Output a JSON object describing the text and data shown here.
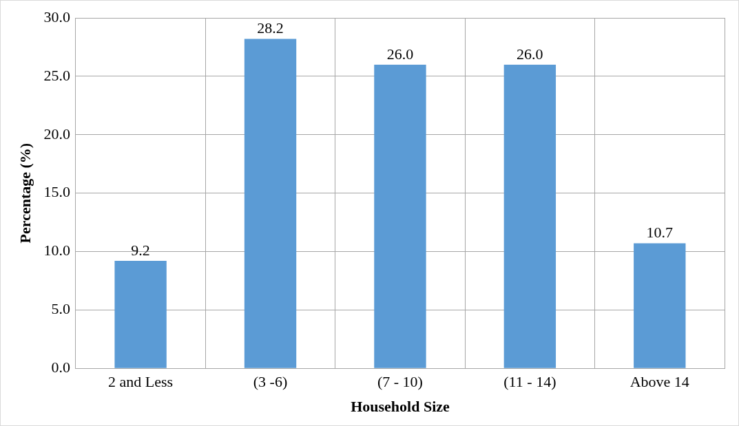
{
  "chart_data": {
    "type": "bar",
    "xlabel": "Household Size",
    "ylabel": "Percentage (%)",
    "categories": [
      "2 and Less",
      "(3 -6)",
      "(7 - 10)",
      "(11 - 14)",
      "Above 14"
    ],
    "values": [
      9.2,
      28.2,
      26.0,
      26.0,
      10.7
    ],
    "color": "#5b9bd5",
    "ylim": [
      0,
      30
    ],
    "yticks": [
      {
        "value": 0,
        "label": "0.0"
      },
      {
        "value": 5,
        "label": "5.0"
      },
      {
        "value": 10,
        "label": "10.0"
      },
      {
        "value": 15,
        "label": "15.0"
      },
      {
        "value": 20,
        "label": "20.0"
      },
      {
        "value": 25,
        "label": "25.0"
      },
      {
        "value": 30,
        "label": "30.0"
      }
    ],
    "value_labels": [
      "9.2",
      "28.2",
      "26.0",
      "26.0",
      "10.7"
    ],
    "grid": true
  }
}
